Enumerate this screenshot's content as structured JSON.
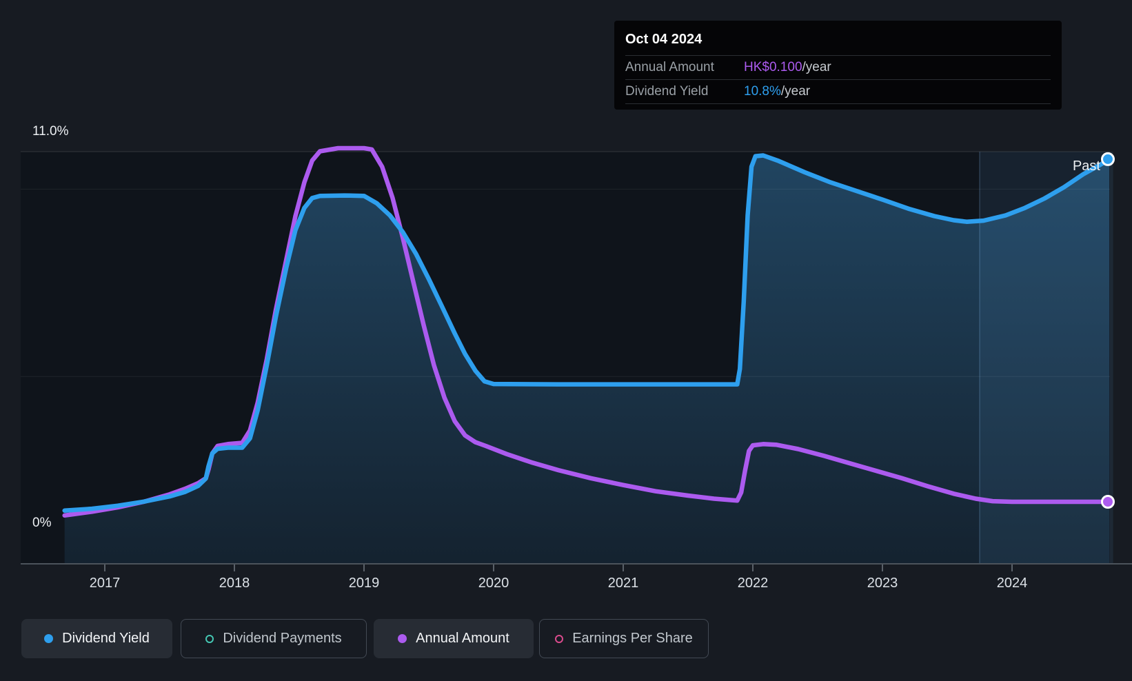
{
  "tooltip": {
    "date": "Oct 04 2024",
    "rows": [
      {
        "label": "Annual Amount",
        "value": "HK$0.100",
        "suffix": "/year",
        "color": "#ac5bef"
      },
      {
        "label": "Dividend Yield",
        "value": "10.8%",
        "suffix": "/year",
        "color": "#2e9fee"
      }
    ]
  },
  "legend": {
    "items": [
      {
        "label": "Dividend Yield",
        "color": "#2e9fee",
        "active": true
      },
      {
        "label": "Dividend Payments",
        "color": "#45c7b3",
        "active": false
      },
      {
        "label": "Annual Amount",
        "color": "#ac5bef",
        "active": true
      },
      {
        "label": "Earnings Per Share",
        "color": "#da4b8d",
        "active": false
      }
    ]
  },
  "colors": {
    "page_background": "#171b22",
    "plot_background": "#0f141b",
    "dividend_yield_line": "#2e9fee",
    "annual_amount_line": "#ac5bef",
    "axis_text": "#dce1e7",
    "grid_line": "#2e343b"
  },
  "chart_data": {
    "type": "line",
    "title": "Dividend history (yield and annual amount)",
    "x_axis": {
      "tick_labels": [
        "2017",
        "2018",
        "2019",
        "2020",
        "2021",
        "2022",
        "2023",
        "2024"
      ],
      "range_years": [
        2016.69,
        2024.78
      ]
    },
    "y_axis": {
      "top_label": "11.0%",
      "zero_label": "0%",
      "unit": "%",
      "max": 11.0,
      "min": 0,
      "gridlines_pct": [
        11,
        10,
        5,
        0
      ]
    },
    "past_band": {
      "label": "Past",
      "from_year": 2023.75,
      "to_year": 2024.78
    },
    "series": [
      {
        "name": "Annual Amount",
        "unit": "HK$",
        "color": "#ac5bef",
        "area_fill": false,
        "end_marker": true,
        "points": [
          [
            2016.69,
            0.078
          ],
          [
            2016.9,
            0.084
          ],
          [
            2017.1,
            0.091
          ],
          [
            2017.3,
            0.1
          ],
          [
            2017.5,
            0.112
          ],
          [
            2017.62,
            0.121
          ],
          [
            2017.72,
            0.13
          ],
          [
            2017.78,
            0.138
          ],
          [
            2017.8,
            0.152
          ],
          [
            2017.83,
            0.178
          ],
          [
            2017.87,
            0.19
          ],
          [
            2017.95,
            0.193
          ],
          [
            2018.06,
            0.195
          ],
          [
            2018.12,
            0.215
          ],
          [
            2018.18,
            0.26
          ],
          [
            2018.25,
            0.33
          ],
          [
            2018.32,
            0.41
          ],
          [
            2018.4,
            0.49
          ],
          [
            2018.47,
            0.56
          ],
          [
            2018.54,
            0.615
          ],
          [
            2018.6,
            0.65
          ],
          [
            2018.66,
            0.665
          ],
          [
            2018.8,
            0.67
          ],
          [
            2019.0,
            0.67
          ],
          [
            2019.06,
            0.668
          ],
          [
            2019.14,
            0.64
          ],
          [
            2019.22,
            0.59
          ],
          [
            2019.3,
            0.525
          ],
          [
            2019.38,
            0.455
          ],
          [
            2019.46,
            0.385
          ],
          [
            2019.54,
            0.32
          ],
          [
            2019.62,
            0.268
          ],
          [
            2019.7,
            0.23
          ],
          [
            2019.78,
            0.207
          ],
          [
            2019.86,
            0.196
          ],
          [
            2019.94,
            0.19
          ],
          [
            2020.1,
            0.177
          ],
          [
            2020.3,
            0.163
          ],
          [
            2020.5,
            0.151
          ],
          [
            2020.75,
            0.138
          ],
          [
            2021.0,
            0.127
          ],
          [
            2021.25,
            0.117
          ],
          [
            2021.5,
            0.11
          ],
          [
            2021.7,
            0.105
          ],
          [
            2021.88,
            0.102
          ],
          [
            2021.91,
            0.115
          ],
          [
            2021.94,
            0.15
          ],
          [
            2021.97,
            0.182
          ],
          [
            2022.0,
            0.191
          ],
          [
            2022.08,
            0.193
          ],
          [
            2022.18,
            0.192
          ],
          [
            2022.35,
            0.185
          ],
          [
            2022.55,
            0.174
          ],
          [
            2022.75,
            0.162
          ],
          [
            2022.95,
            0.15
          ],
          [
            2023.15,
            0.138
          ],
          [
            2023.35,
            0.125
          ],
          [
            2023.55,
            0.113
          ],
          [
            2023.72,
            0.105
          ],
          [
            2023.85,
            0.101
          ],
          [
            2024.0,
            0.1
          ],
          [
            2024.3,
            0.1
          ],
          [
            2024.55,
            0.1
          ],
          [
            2024.75,
            0.1
          ]
        ]
      },
      {
        "name": "Dividend Yield",
        "unit": "%",
        "color": "#2e9fee",
        "area_fill": true,
        "end_marker": true,
        "points": [
          [
            2016.69,
            1.42
          ],
          [
            2016.9,
            1.47
          ],
          [
            2017.1,
            1.55
          ],
          [
            2017.3,
            1.66
          ],
          [
            2017.5,
            1.8
          ],
          [
            2017.62,
            1.92
          ],
          [
            2017.72,
            2.08
          ],
          [
            2017.78,
            2.28
          ],
          [
            2017.8,
            2.6
          ],
          [
            2017.83,
            2.95
          ],
          [
            2017.87,
            3.07
          ],
          [
            2017.95,
            3.1
          ],
          [
            2018.06,
            3.1
          ],
          [
            2018.12,
            3.35
          ],
          [
            2018.18,
            4.1
          ],
          [
            2018.25,
            5.3
          ],
          [
            2018.32,
            6.6
          ],
          [
            2018.4,
            7.9
          ],
          [
            2018.47,
            8.9
          ],
          [
            2018.54,
            9.5
          ],
          [
            2018.6,
            9.76
          ],
          [
            2018.66,
            9.82
          ],
          [
            2018.85,
            9.83
          ],
          [
            2019.0,
            9.82
          ],
          [
            2019.1,
            9.62
          ],
          [
            2019.2,
            9.3
          ],
          [
            2019.3,
            8.85
          ],
          [
            2019.4,
            8.28
          ],
          [
            2019.5,
            7.6
          ],
          [
            2019.6,
            6.88
          ],
          [
            2019.7,
            6.15
          ],
          [
            2019.78,
            5.6
          ],
          [
            2019.86,
            5.15
          ],
          [
            2019.93,
            4.87
          ],
          [
            2020.0,
            4.8
          ],
          [
            2020.5,
            4.79
          ],
          [
            2021.0,
            4.79
          ],
          [
            2021.5,
            4.79
          ],
          [
            2021.88,
            4.79
          ],
          [
            2021.9,
            5.2
          ],
          [
            2021.93,
            7.0
          ],
          [
            2021.96,
            9.3
          ],
          [
            2021.99,
            10.6
          ],
          [
            2022.02,
            10.88
          ],
          [
            2022.08,
            10.9
          ],
          [
            2022.2,
            10.75
          ],
          [
            2022.4,
            10.45
          ],
          [
            2022.6,
            10.18
          ],
          [
            2022.8,
            9.95
          ],
          [
            2023.0,
            9.72
          ],
          [
            2023.2,
            9.48
          ],
          [
            2023.4,
            9.28
          ],
          [
            2023.55,
            9.17
          ],
          [
            2023.65,
            9.13
          ],
          [
            2023.78,
            9.16
          ],
          [
            2023.95,
            9.3
          ],
          [
            2024.1,
            9.5
          ],
          [
            2024.25,
            9.75
          ],
          [
            2024.4,
            10.05
          ],
          [
            2024.55,
            10.4
          ],
          [
            2024.68,
            10.65
          ],
          [
            2024.75,
            10.8
          ]
        ]
      }
    ]
  }
}
